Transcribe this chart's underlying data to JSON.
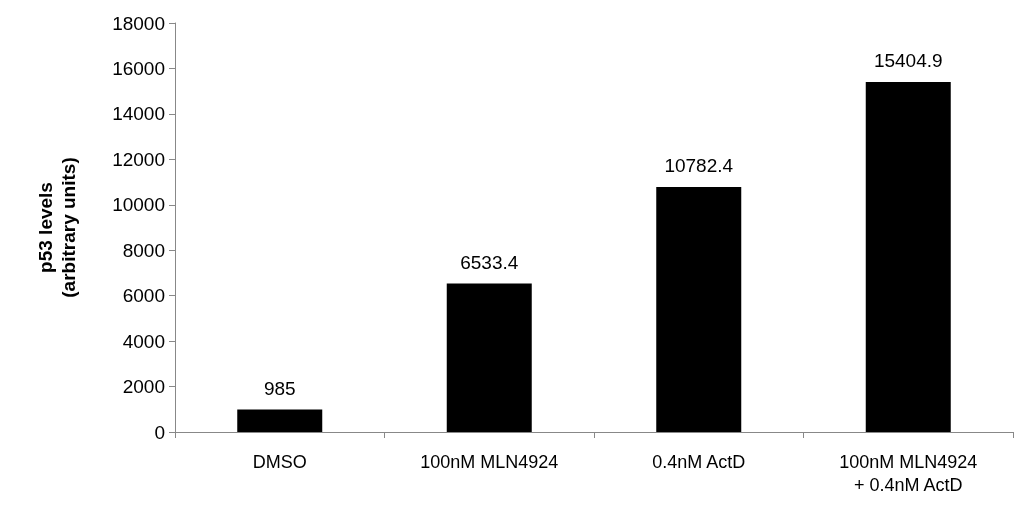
{
  "chart_data": {
    "type": "bar",
    "ylabel": "p53 levels\n(arbitrary units)",
    "categories": [
      "DMSO",
      "100nM MLN4924",
      "0.4nM ActD",
      "100nM MLN4924\n+ 0.4nM ActD"
    ],
    "values": [
      985,
      6533.4,
      10782.4,
      15404.9
    ],
    "color": "#000000",
    "ylim": [
      0,
      18000
    ],
    "yticks": [
      0,
      2000,
      4000,
      6000,
      8000,
      10000,
      12000,
      14000,
      16000,
      18000
    ],
    "grid": false,
    "data_labels": true
  }
}
